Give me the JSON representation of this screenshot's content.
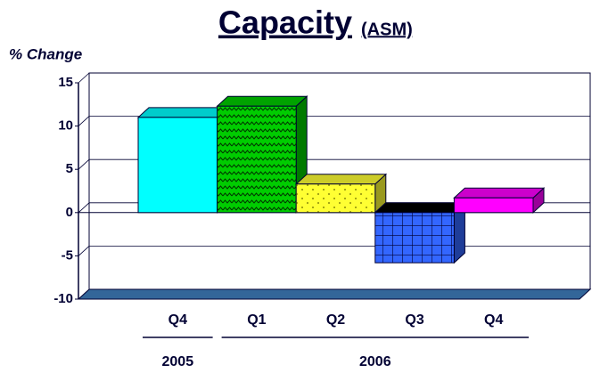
{
  "chart_data": {
    "type": "bar3d",
    "title": "Capacity",
    "subtitle": "(ASM)",
    "y_label": "% Change",
    "categories": [
      "Q4",
      "Q1",
      "Q2",
      "Q3",
      "Q4"
    ],
    "category_groups": [
      {
        "label": "2005",
        "count": 1
      },
      {
        "label": "2006",
        "count": 4
      }
    ],
    "values": [
      11,
      12.3,
      3.3,
      -5.8,
      1.7
    ],
    "colors": [
      "#00ffff",
      "#00cc00",
      "#ffff33",
      "#3366ff",
      "#ff00ff"
    ],
    "ylim": [
      -10,
      15
    ],
    "yticks": [
      -10,
      -5,
      0,
      5,
      10,
      15
    ],
    "grid": true
  }
}
